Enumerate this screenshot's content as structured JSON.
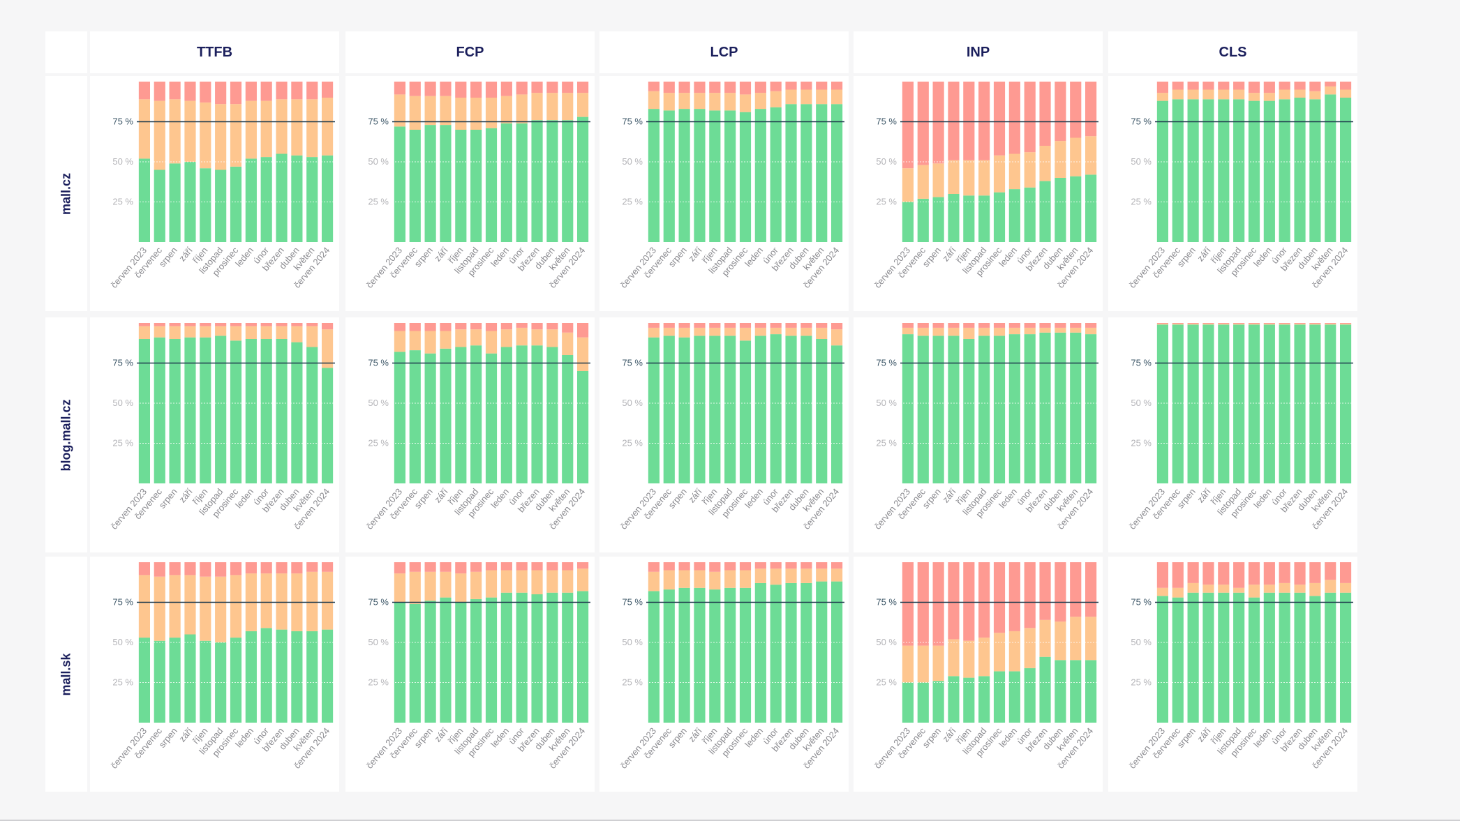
{
  "columns": [
    "TTFB",
    "FCP",
    "LCP",
    "INP",
    "CLS"
  ],
  "rows": [
    "mall.cz",
    "blog.mall.cz",
    "mall.sk"
  ],
  "colors": {
    "good": "#6ddc96",
    "needs_improvement": "#fec68f",
    "poor": "#fe9a92",
    "threshold_line": "#1f3b4d"
  },
  "chart_data": {
    "type": "bar",
    "stacked": true,
    "categories": [
      "červen 2023",
      "červenec",
      "srpen",
      "září",
      "říjen",
      "listopad",
      "prosinec",
      "leden",
      "únor",
      "březen",
      "duben",
      "květen",
      "červen 2024"
    ],
    "ylim": [
      0,
      100
    ],
    "yticks": [
      {
        "value": 25,
        "label": "25 %"
      },
      {
        "value": 50,
        "label": "50 %"
      },
      {
        "value": 75,
        "label": "75 %"
      }
    ],
    "reference_line": 75,
    "grid": true,
    "panels": [
      [
        {
          "series": [
            {
              "color": "#6ddc96",
              "values": [
                52,
                45,
                49,
                50,
                46,
                45,
                47,
                52,
                53,
                55,
                54,
                53,
                54
              ]
            },
            {
              "color": "#fec68f",
              "values": [
                37,
                43,
                40,
                38,
                41,
                41,
                39,
                36,
                35,
                34,
                35,
                36,
                36
              ]
            },
            {
              "color": "#fe9a92",
              "values": [
                11,
                12,
                11,
                12,
                13,
                14,
                14,
                12,
                12,
                11,
                11,
                11,
                10
              ]
            }
          ]
        },
        {
          "series": [
            {
              "color": "#6ddc96",
              "values": [
                72,
                70,
                73,
                73,
                70,
                70,
                71,
                74,
                74,
                76,
                76,
                76,
                78
              ]
            },
            {
              "color": "#fec68f",
              "values": [
                20,
                21,
                18,
                18,
                20,
                20,
                19,
                17,
                18,
                17,
                17,
                17,
                15
              ]
            },
            {
              "color": "#fe9a92",
              "values": [
                8,
                9,
                9,
                9,
                10,
                10,
                10,
                9,
                8,
                7,
                7,
                7,
                7
              ]
            }
          ]
        },
        {
          "series": [
            {
              "color": "#6ddc96",
              "values": [
                83,
                82,
                83,
                83,
                82,
                82,
                81,
                83,
                84,
                86,
                86,
                86,
                86
              ]
            },
            {
              "color": "#fec68f",
              "values": [
                11,
                11,
                10,
                10,
                11,
                11,
                11,
                10,
                10,
                9,
                9,
                9,
                9
              ]
            },
            {
              "color": "#fe9a92",
              "values": [
                6,
                7,
                7,
                7,
                7,
                7,
                8,
                7,
                6,
                5,
                5,
                5,
                5
              ]
            }
          ]
        },
        {
          "series": [
            {
              "color": "#6ddc96",
              "values": [
                25,
                27,
                28,
                30,
                29,
                29,
                31,
                33,
                34,
                38,
                40,
                41,
                42
              ]
            },
            {
              "color": "#fec68f",
              "values": [
                21,
                21,
                21,
                21,
                22,
                22,
                23,
                22,
                22,
                22,
                23,
                24,
                24
              ]
            },
            {
              "color": "#fe9a92",
              "values": [
                54,
                52,
                51,
                49,
                49,
                49,
                46,
                45,
                44,
                40,
                37,
                35,
                34
              ]
            }
          ]
        },
        {
          "series": [
            {
              "color": "#6ddc96",
              "values": [
                88,
                89,
                89,
                89,
                89,
                89,
                88,
                88,
                89,
                90,
                89,
                92,
                90
              ]
            },
            {
              "color": "#fec68f",
              "values": [
                5,
                6,
                6,
                6,
                6,
                6,
                5,
                5,
                6,
                5,
                5,
                5,
                5
              ]
            },
            {
              "color": "#fe9a92",
              "values": [
                7,
                5,
                5,
                5,
                5,
                5,
                7,
                7,
                5,
                5,
                6,
                3,
                5
              ]
            }
          ]
        }
      ],
      [
        {
          "series": [
            {
              "color": "#6ddc96",
              "values": [
                90,
                91,
                90,
                91,
                91,
                92,
                89,
                90,
                90,
                90,
                88,
                85,
                72
              ]
            },
            {
              "color": "#fec68f",
              "values": [
                8,
                7,
                8,
                7,
                7,
                6,
                9,
                8,
                8,
                8,
                10,
                13,
                24
              ]
            },
            {
              "color": "#fe9a92",
              "values": [
                2,
                2,
                2,
                2,
                2,
                2,
                2,
                2,
                2,
                2,
                2,
                2,
                4
              ]
            }
          ]
        },
        {
          "series": [
            {
              "color": "#6ddc96",
              "values": [
                82,
                83,
                81,
                84,
                85,
                86,
                81,
                85,
                86,
                86,
                85,
                80,
                70
              ]
            },
            {
              "color": "#fec68f",
              "values": [
                13,
                12,
                14,
                11,
                11,
                10,
                14,
                11,
                11,
                10,
                11,
                14,
                21
              ]
            },
            {
              "color": "#fe9a92",
              "values": [
                5,
                5,
                5,
                5,
                4,
                4,
                5,
                4,
                3,
                4,
                4,
                6,
                9
              ]
            }
          ]
        },
        {
          "series": [
            {
              "color": "#6ddc96",
              "values": [
                91,
                92,
                91,
                92,
                92,
                92,
                89,
                92,
                93,
                92,
                92,
                90,
                86
              ]
            },
            {
              "color": "#fec68f",
              "values": [
                6,
                5,
                6,
                5,
                5,
                5,
                8,
                5,
                4,
                5,
                5,
                7,
                10
              ]
            },
            {
              "color": "#fe9a92",
              "values": [
                3,
                3,
                3,
                3,
                3,
                3,
                3,
                3,
                3,
                3,
                3,
                3,
                4
              ]
            }
          ]
        },
        {
          "series": [
            {
              "color": "#6ddc96",
              "values": [
                93,
                92,
                92,
                92,
                90,
                92,
                92,
                93,
                93,
                94,
                94,
                94,
                93
              ]
            },
            {
              "color": "#fec68f",
              "values": [
                4,
                5,
                5,
                5,
                7,
                5,
                5,
                4,
                4,
                3,
                3,
                3,
                4
              ]
            },
            {
              "color": "#fe9a92",
              "values": [
                3,
                3,
                3,
                3,
                3,
                3,
                3,
                3,
                3,
                3,
                3,
                3,
                3
              ]
            }
          ]
        },
        {
          "series": [
            {
              "color": "#6ddc96",
              "values": [
                99,
                99,
                99,
                99,
                99,
                99,
                99,
                99,
                99,
                99,
                99,
                99,
                99
              ]
            },
            {
              "color": "#fec68f",
              "values": [
                0.5,
                0.5,
                0.5,
                0.5,
                0.5,
                0.5,
                0.5,
                0.5,
                0.5,
                0.5,
                0.5,
                0.5,
                0.5
              ]
            },
            {
              "color": "#fe9a92",
              "values": [
                0.5,
                0.5,
                0.5,
                0.5,
                0.5,
                0.5,
                0.5,
                0.5,
                0.5,
                0.5,
                0.5,
                0.5,
                0.5
              ]
            }
          ]
        }
      ],
      [
        {
          "series": [
            {
              "color": "#6ddc96",
              "values": [
                53,
                51,
                53,
                55,
                51,
                50,
                53,
                57,
                59,
                58,
                57,
                57,
                58
              ]
            },
            {
              "color": "#fec68f",
              "values": [
                39,
                40,
                39,
                37,
                40,
                41,
                39,
                36,
                34,
                35,
                36,
                37,
                36
              ]
            },
            {
              "color": "#fe9a92",
              "values": [
                8,
                9,
                8,
                8,
                9,
                9,
                8,
                7,
                7,
                7,
                7,
                6,
                6
              ]
            }
          ]
        },
        {
          "series": [
            {
              "color": "#6ddc96",
              "values": [
                75,
                74,
                76,
                78,
                75,
                77,
                78,
                81,
                81,
                80,
                81,
                81,
                82
              ]
            },
            {
              "color": "#fec68f",
              "values": [
                18,
                20,
                18,
                16,
                18,
                17,
                17,
                14,
                14,
                15,
                14,
                14,
                14
              ]
            },
            {
              "color": "#fe9a92",
              "values": [
                7,
                6,
                6,
                6,
                7,
                6,
                5,
                5,
                5,
                5,
                5,
                5,
                4
              ]
            }
          ]
        },
        {
          "series": [
            {
              "color": "#6ddc96",
              "values": [
                82,
                83,
                84,
                84,
                83,
                84,
                84,
                87,
                86,
                87,
                87,
                88,
                88
              ]
            },
            {
              "color": "#fec68f",
              "values": [
                12,
                12,
                11,
                11,
                11,
                11,
                11,
                9,
                10,
                9,
                9,
                8,
                8
              ]
            },
            {
              "color": "#fe9a92",
              "values": [
                6,
                5,
                5,
                5,
                6,
                5,
                5,
                4,
                4,
                4,
                4,
                4,
                4
              ]
            }
          ]
        },
        {
          "series": [
            {
              "color": "#6ddc96",
              "values": [
                25,
                25,
                26,
                29,
                28,
                29,
                32,
                32,
                34,
                41,
                39,
                39,
                39
              ]
            },
            {
              "color": "#fec68f",
              "values": [
                23,
                23,
                22,
                23,
                23,
                24,
                24,
                25,
                25,
                23,
                24,
                27,
                27
              ]
            },
            {
              "color": "#fe9a92",
              "values": [
                52,
                52,
                52,
                48,
                49,
                47,
                44,
                43,
                41,
                36,
                37,
                34,
                34
              ]
            }
          ]
        },
        {
          "series": [
            {
              "color": "#6ddc96",
              "values": [
                79,
                78,
                81,
                81,
                81,
                81,
                78,
                81,
                81,
                81,
                79,
                81,
                81
              ]
            },
            {
              "color": "#fec68f",
              "values": [
                5,
                6,
                6,
                5,
                5,
                3,
                8,
                5,
                6,
                5,
                8,
                8,
                6
              ]
            },
            {
              "color": "#fe9a92",
              "values": [
                16,
                16,
                13,
                14,
                14,
                16,
                14,
                14,
                13,
                14,
                13,
                11,
                13
              ]
            }
          ]
        }
      ]
    ]
  }
}
